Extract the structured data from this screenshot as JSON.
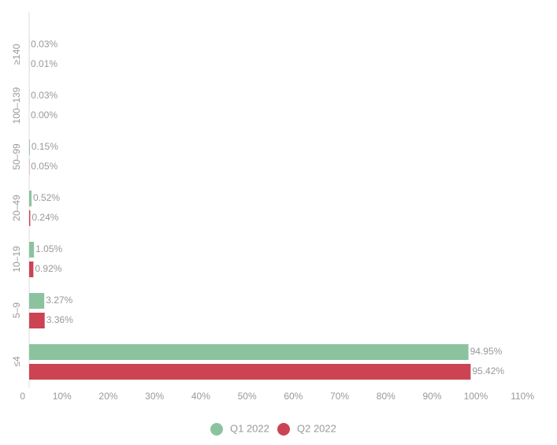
{
  "chart_data": {
    "type": "bar",
    "orientation": "horizontal",
    "categories": [
      "≥140",
      "100–139",
      "50–99",
      "20–49",
      "10–19",
      "5–9",
      "≤4"
    ],
    "series": [
      {
        "name": "Q1 2022",
        "color": "#8cc39f",
        "values": [
          0.03,
          0.03,
          0.15,
          0.52,
          1.05,
          3.27,
          94.95
        ],
        "value_labels": [
          "0.03%",
          "0.03%",
          "0.15%",
          "0.52%",
          "1.05%",
          "3.27%",
          "94.95%"
        ]
      },
      {
        "name": "Q2 2022",
        "color": "#cc4454",
        "values": [
          0.01,
          0.0,
          0.05,
          0.24,
          0.92,
          3.36,
          95.42
        ],
        "value_labels": [
          "0.01%",
          "0.00%",
          "0.05%",
          "0.24%",
          "0.92%",
          "3.36%",
          "95.42%"
        ]
      }
    ],
    "xlim": [
      0,
      110
    ],
    "xticks": [
      0,
      {
        "value": 10,
        "label": "10%"
      },
      {
        "value": 20,
        "label": "20%"
      },
      {
        "value": 30,
        "label": "30%"
      },
      {
        "value": 40,
        "label": "40%"
      },
      {
        "value": 50,
        "label": "50%"
      },
      {
        "value": 60,
        "label": "60%"
      },
      {
        "value": 70,
        "label": "70%"
      },
      {
        "value": 80,
        "label": "80%"
      },
      {
        "value": 90,
        "label": "90%"
      },
      {
        "value": 100,
        "label": "100%"
      },
      {
        "value": 110,
        "label": "110%"
      }
    ],
    "legend": "bottom"
  }
}
